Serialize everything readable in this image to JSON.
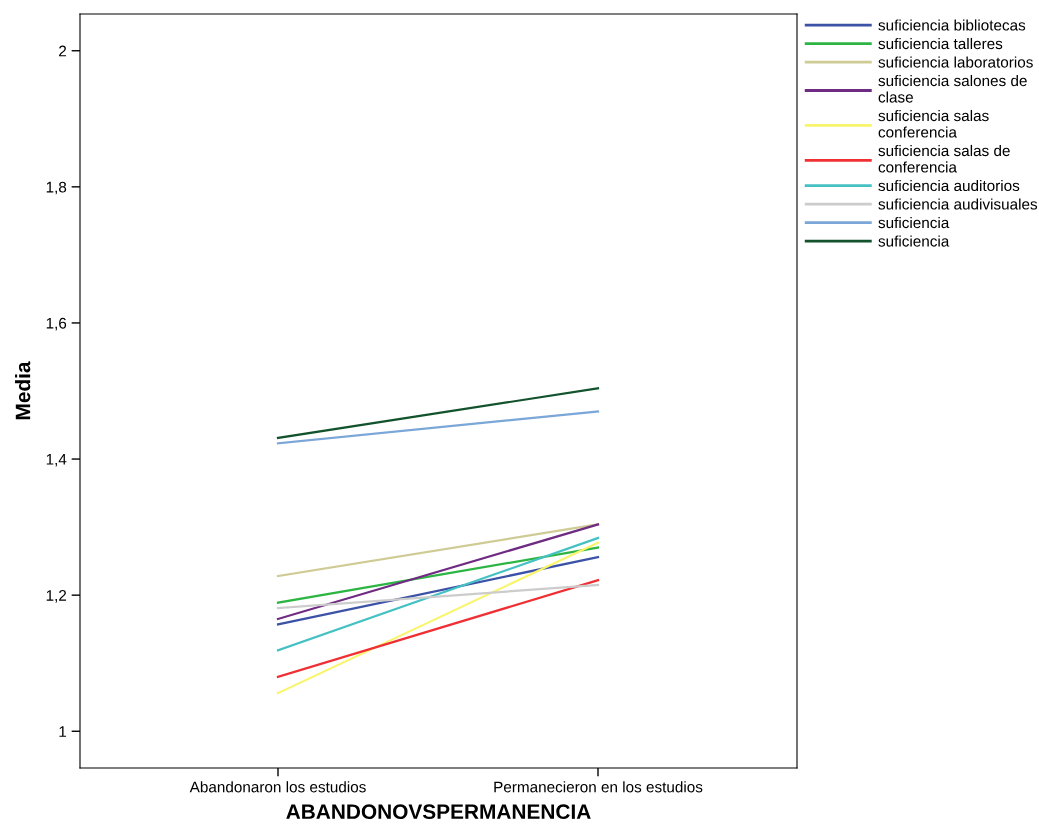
{
  "chart_data": {
    "type": "line",
    "xlabel": "ABANDONOVSPERMANENCIA",
    "ylabel": "Media",
    "categories": [
      "Abandonaron los estudios",
      "Permanecieron en los estudios"
    ],
    "ylim": [
      0.946,
      2.054
    ],
    "yticks": [
      {
        "value": 1,
        "label": "1"
      },
      {
        "value": 1.2,
        "label": "1,2"
      },
      {
        "value": 1.4,
        "label": "1,4"
      },
      {
        "value": 1.6,
        "label": "1,6"
      },
      {
        "value": 1.8,
        "label": "1,8"
      },
      {
        "value": 2,
        "label": "2"
      }
    ],
    "grid": false,
    "legend": "right",
    "marker": "none",
    "line_style": "solid",
    "series": [
      {
        "name": "suficiencia bibliotecas",
        "color": "#3c52a6",
        "values": [
          1.157,
          1.256
        ]
      },
      {
        "name": "suficiencia talleres",
        "color": "#2db543",
        "values": [
          1.189,
          1.27
        ]
      },
      {
        "name": "suficiencia laboratorios",
        "color": "#cfcb95",
        "values": [
          1.228,
          1.304
        ]
      },
      {
        "name": "suficiencia salones de clase",
        "color": "#6f2a82",
        "values": [
          1.165,
          1.304
        ]
      },
      {
        "name": "suficiencia salas conferencia",
        "color": "#f9f56b",
        "values": [
          1.056,
          1.277
        ]
      },
      {
        "name": "suficiencia salas de conferencia",
        "color": "#ef2f33",
        "values": [
          1.08,
          1.222
        ]
      },
      {
        "name": "suficiencia auditorios",
        "color": "#45c1c4",
        "values": [
          1.119,
          1.284
        ]
      },
      {
        "name": "suficiencia audivisuales",
        "color": "#cccccc",
        "values": [
          1.181,
          1.215
        ]
      },
      {
        "name": "suficiencia",
        "color": "#7aa6d8",
        "values": [
          1.423,
          1.47
        ]
      },
      {
        "name": "suficiencia",
        "color": "#12522c",
        "values": [
          1.431,
          1.504
        ]
      }
    ]
  }
}
